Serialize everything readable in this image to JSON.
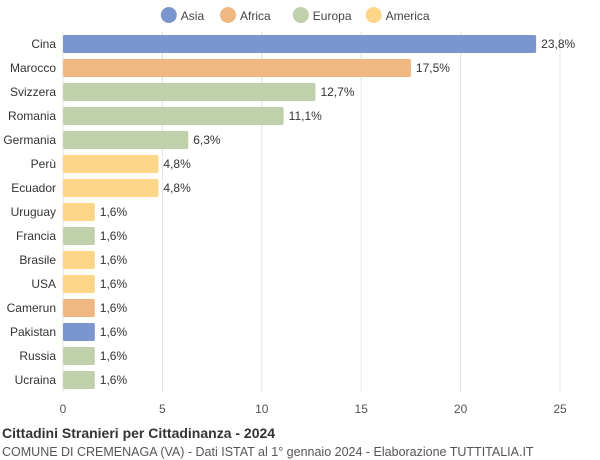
{
  "chart_data": {
    "type": "bar",
    "orientation": "horizontal",
    "categories": [
      "Cina",
      "Marocco",
      "Svizzera",
      "Romania",
      "Germania",
      "Perù",
      "Ecuador",
      "Uruguay",
      "Francia",
      "Brasile",
      "USA",
      "Camerun",
      "Pakistan",
      "Russia",
      "Ucraina"
    ],
    "values": [
      23.8,
      17.5,
      12.7,
      11.1,
      6.3,
      4.8,
      4.8,
      1.6,
      1.6,
      1.6,
      1.6,
      1.6,
      1.6,
      1.6,
      1.6
    ],
    "value_labels": [
      "23,8%",
      "17,5%",
      "12,7%",
      "11,1%",
      "6,3%",
      "4,8%",
      "4,8%",
      "1,6%",
      "1,6%",
      "1,6%",
      "1,6%",
      "1,6%",
      "1,6%",
      "1,6%",
      "1,6%"
    ],
    "groups": [
      "Asia",
      "Africa",
      "Europa",
      "Europa",
      "Europa",
      "America",
      "America",
      "America",
      "Europa",
      "America",
      "America",
      "Africa",
      "Asia",
      "Europa",
      "Europa"
    ],
    "legend": [
      {
        "name": "Asia",
        "color": "#7b96cf"
      },
      {
        "name": "Africa",
        "color": "#efb883"
      },
      {
        "name": "Europa",
        "color": "#bfd0aa"
      },
      {
        "name": "America",
        "color": "#fed68a"
      }
    ],
    "legend_position": "top",
    "xlim": [
      0,
      25
    ],
    "xticks": [
      0,
      5,
      10,
      15,
      20,
      25
    ],
    "grid": true,
    "title": "Cittadini Stranieri per Cittadinanza - 2024",
    "subtitle": "COMUNE DI CREMENAGA (VA) - Dati ISTAT al 1° gennaio 2024 - Elaborazione TUTTITALIA.IT"
  }
}
